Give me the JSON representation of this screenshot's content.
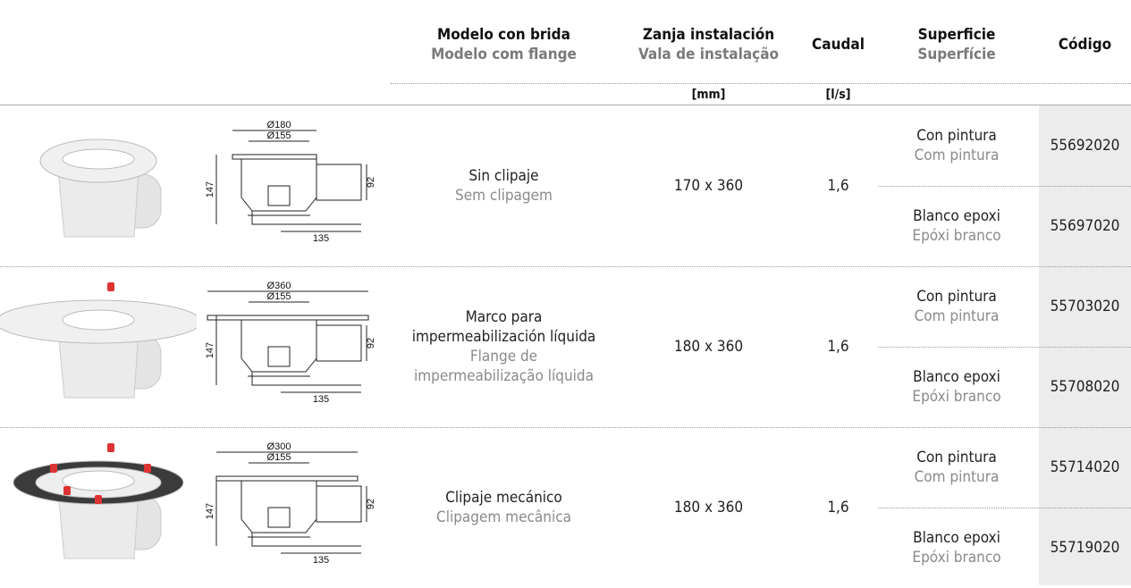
{
  "header": {
    "columns": [
      {
        "es": "Modelo con brida",
        "pt": "Modelo com flange"
      },
      {
        "es": "Zanja instalación",
        "pt": "Vala de instalação"
      },
      {
        "es": "Caudal"
      },
      {
        "es": "Superficie",
        "pt": "Superfície"
      },
      {
        "es": "Código"
      }
    ],
    "units": [
      "[mm]",
      "[l/s]"
    ]
  },
  "rows": [
    {
      "drawing": {
        "outer": "Ø180",
        "inner": "Ø155",
        "height": "147",
        "outlet_height": "92",
        "outlet_length": "135"
      },
      "model": {
        "es": [
          "Sin clipaje"
        ],
        "pt": [
          "Sem clipagem"
        ]
      },
      "trench": "170 x 360",
      "flow": "1,6",
      "finishes": [
        {
          "es": "Con pintura",
          "pt": "Com pintura",
          "code": "55692020"
        },
        {
          "es": "Blanco epoxi",
          "pt": "Epóxi branco",
          "code": "55697020"
        }
      ]
    },
    {
      "drawing": {
        "outer": "Ø360",
        "inner": "Ø155",
        "height": "147",
        "outlet_height": "92",
        "outlet_length": "135"
      },
      "model": {
        "es": [
          "Marco para",
          "impermeabilización líquida"
        ],
        "pt": [
          "Flange de",
          "impermeabilização líquida"
        ]
      },
      "trench": "180 x 360",
      "flow": "1,6",
      "finishes": [
        {
          "es": "Con pintura",
          "pt": "Com pintura",
          "code": "55703020"
        },
        {
          "es": "Blanco epoxi",
          "pt": "Epóxi branco",
          "code": "55708020"
        }
      ]
    },
    {
      "drawing": {
        "outer": "Ø300",
        "inner": "Ø155",
        "height": "147",
        "outlet_height": "92",
        "outlet_length": "135"
      },
      "model": {
        "es": [
          "Clipaje mecánico"
        ],
        "pt": [
          "Clipagem mecânica"
        ]
      },
      "trench": "180 x 360",
      "flow": "1,6",
      "finishes": [
        {
          "es": "Con pintura",
          "pt": "Com pintura",
          "code": "55714020"
        },
        {
          "es": "Blanco epoxi",
          "pt": "Epóxi branco",
          "code": "55719020"
        }
      ]
    }
  ]
}
